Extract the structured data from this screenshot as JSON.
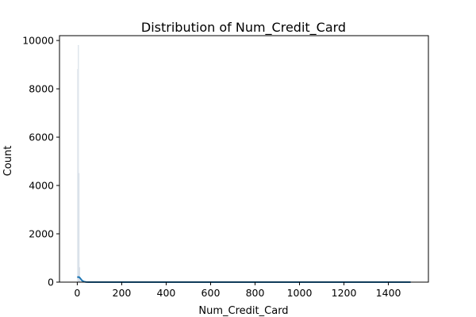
{
  "chart_data": {
    "type": "histogram",
    "title": "Distribution of Num_Credit_Card",
    "xlabel": "Num_Credit_Card",
    "ylabel": "Count",
    "xlim": [
      -80,
      1580
    ],
    "ylim": [
      0,
      10200
    ],
    "xticks": [
      0,
      200,
      400,
      600,
      800,
      1000,
      1200,
      1400
    ],
    "yticks": [
      0,
      2000,
      4000,
      6000,
      8000,
      10000
    ],
    "grid": false,
    "bars": [
      {
        "x0": 0,
        "x1": 3,
        "count": 8800
      },
      {
        "x0": 3,
        "x1": 6,
        "count": 9800
      },
      {
        "x0": 6,
        "x1": 9,
        "count": 4500
      },
      {
        "x0": 9,
        "x1": 12,
        "count": 600
      },
      {
        "x0": 12,
        "x1": 20,
        "count": 40
      }
    ],
    "kde": {
      "x": [
        0,
        5,
        10,
        15,
        20,
        25,
        30,
        40,
        50,
        75,
        100,
        200,
        400,
        600,
        800,
        1000,
        1200,
        1400,
        1500
      ],
      "y": [
        200,
        215,
        195,
        140,
        80,
        45,
        20,
        6,
        2,
        1,
        0,
        0,
        0,
        0,
        0,
        0,
        0,
        0,
        0
      ]
    },
    "colors": {
      "bar_edge": "#cfd8e3",
      "kde": "#1f77b4",
      "axis": "#000000"
    }
  }
}
